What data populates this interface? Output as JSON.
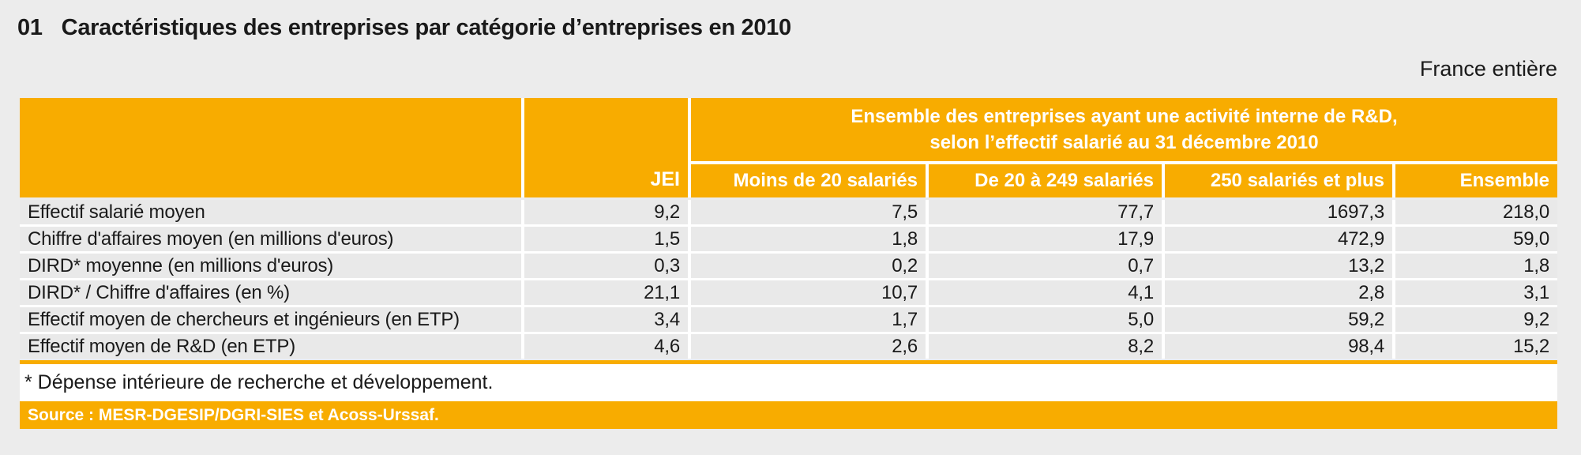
{
  "page": {
    "number": "01",
    "title": "Caractéristiques des entreprises par catégorie d’entreprises en 2010",
    "region_note": "France entière"
  },
  "table": {
    "group_header_line1": "Ensemble des entreprises ayant une activité interne de R&D,",
    "group_header_line2": "selon l’effectif salarié au 31 décembre 2010",
    "jei_column": "JEI",
    "columns": [
      "Moins de 20 salariés",
      "De 20 à 249 salariés",
      "250 salariés et plus",
      "Ensemble"
    ],
    "rows": [
      {
        "label": "Effectif salarié moyen",
        "values": [
          "9,2",
          "7,5",
          "77,7",
          "1697,3",
          "218,0"
        ]
      },
      {
        "label": "Chiffre d'affaires moyen (en millions d'euros)",
        "values": [
          "1,5",
          "1,8",
          "17,9",
          "472,9",
          "59,0"
        ]
      },
      {
        "label": "DIRD* moyenne (en millions d'euros)",
        "values": [
          "0,3",
          "0,2",
          "0,7",
          "13,2",
          "1,8"
        ]
      },
      {
        "label": "DIRD* / Chiffre d'affaires (en %)",
        "values": [
          "21,1",
          "10,7",
          "4,1",
          "2,8",
          "3,1"
        ]
      },
      {
        "label": "Effectif moyen de chercheurs et ingénieurs (en ETP)",
        "values": [
          "3,4",
          "1,7",
          "5,0",
          "59,2",
          "9,2"
        ]
      },
      {
        "label": "Effectif moyen de R&D (en ETP)",
        "values": [
          "4,6",
          "2,6",
          "8,2",
          "98,4",
          "15,2"
        ]
      }
    ]
  },
  "footnote": "* Dépense intérieure de recherche et développement.",
  "source": "Source : MESR-DGESIP/DGRI-SIES et Acoss-Urssaf.",
  "colors": {
    "accent_orange": "#F8AC00",
    "row_gray": "#E9E9E9",
    "page_gray": "#ECECEC",
    "header_text": "#FFFFFF"
  }
}
